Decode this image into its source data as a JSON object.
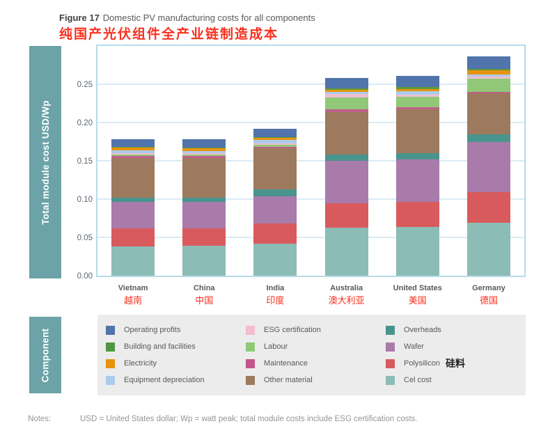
{
  "header": {
    "figure_label": "Figure 17",
    "figure_title": "Domestic PV manufacturing costs for all components",
    "subtitle_zh": "纯国产光伏组件全产业链制造成本"
  },
  "colors": {
    "banner_teal": "#6ba3a8",
    "plot_border": "#b7dbe9",
    "gridline": "#d9ebf4",
    "legend_bg": "#ececec",
    "red_text": "#f9301f",
    "label_gray": "#58595b"
  },
  "chart_data": {
    "type": "bar",
    "stacked": true,
    "title": "Domestic PV manufacturing costs for all components",
    "ylabel": "Total module cost USD/Wp",
    "xlabel": "",
    "ylim": [
      0,
      0.3
    ],
    "yticks": [
      "0.00",
      "0.05",
      "0.10",
      "0.15",
      "0.20",
      "0.25"
    ],
    "grid": true,
    "categories": [
      {
        "en": "Vietnam",
        "zh": "越南"
      },
      {
        "en": "China",
        "zh": "中国"
      },
      {
        "en": "India",
        "zh": "印度"
      },
      {
        "en": "Australia",
        "zh": "澳大利亚"
      },
      {
        "en": "United States",
        "zh": "美国"
      },
      {
        "en": "Germany",
        "zh": "德国"
      }
    ],
    "series": [
      {
        "name": "Cel cost",
        "color": "#8cbcb6",
        "values": [
          0.038,
          0.039,
          0.042,
          0.063,
          0.064,
          0.069
        ]
      },
      {
        "name": "Polysilicon",
        "color": "#d85a5c",
        "values": [
          0.024,
          0.023,
          0.026,
          0.032,
          0.032,
          0.04
        ]
      },
      {
        "name": "Wafer",
        "color": "#a87bab",
        "values": [
          0.034,
          0.034,
          0.036,
          0.055,
          0.056,
          0.066
        ]
      },
      {
        "name": "Overheads",
        "color": "#4a948e",
        "values": [
          0.006,
          0.006,
          0.009,
          0.008,
          0.008,
          0.01
        ]
      },
      {
        "name": "Other material",
        "color": "#9d7a5e",
        "values": [
          0.052,
          0.052,
          0.053,
          0.056,
          0.057,
          0.053
        ]
      },
      {
        "name": "Maintenance",
        "color": "#c0608c",
        "values": [
          0.002,
          0.002,
          0.002,
          0.003,
          0.003,
          0.002
        ]
      },
      {
        "name": "Labour",
        "color": "#90c878",
        "values": [
          0.002,
          0.002,
          0.003,
          0.016,
          0.014,
          0.017
        ]
      },
      {
        "name": "ESG certification",
        "color": "#f2bdd1",
        "values": [
          0.002,
          0.002,
          0.002,
          0.004,
          0.002,
          0.003
        ]
      },
      {
        "name": "Equipment depreciation",
        "color": "#abcbea",
        "values": [
          0.004,
          0.003,
          0.004,
          0.003,
          0.005,
          0.003
        ]
      },
      {
        "name": "Electricity",
        "color": "#e8930f",
        "values": [
          0.003,
          0.003,
          0.003,
          0.003,
          0.003,
          0.005
        ]
      },
      {
        "name": "Building and facilities",
        "color": "#5d9a3a",
        "values": [
          0.001,
          0.001,
          0.001,
          0.002,
          0.002,
          0.002
        ]
      },
      {
        "name": "Operating profits",
        "color": "#5074ab",
        "values": [
          0.01,
          0.011,
          0.011,
          0.013,
          0.015,
          0.016
        ]
      }
    ],
    "totals": [
      0.178,
      0.178,
      0.192,
      0.258,
      0.261,
      0.286
    ],
    "legend_position": "bottom"
  },
  "legend": {
    "title": "Component",
    "items": [
      {
        "label": "Operating profits",
        "color": "#5074ab"
      },
      {
        "label": "Building and facilities",
        "color": "#4f9640"
      },
      {
        "label": "Electricity",
        "color": "#e8930f"
      },
      {
        "label": "Equipment depreciation",
        "color": "#abcbea"
      },
      {
        "label": "ESG certification",
        "color": "#f2bdd1"
      },
      {
        "label": "Labour",
        "color": "#90c878"
      },
      {
        "label": "Maintenance",
        "color": "#c4548c"
      },
      {
        "label": "Other material",
        "color": "#9d7a5e"
      },
      {
        "label": "Overheads",
        "color": "#4a948e"
      },
      {
        "label": "Wafer",
        "color": "#a87bab"
      },
      {
        "label": "Polysilicon",
        "color": "#d85a5c",
        "annotation": "硅料"
      },
      {
        "label": "Cel cost",
        "color": "#8cbcb6"
      }
    ]
  },
  "notes": {
    "label": "Notes:",
    "text": "USD = United States dollar; Wp = watt peak; total module costs include ESG certification costs."
  }
}
